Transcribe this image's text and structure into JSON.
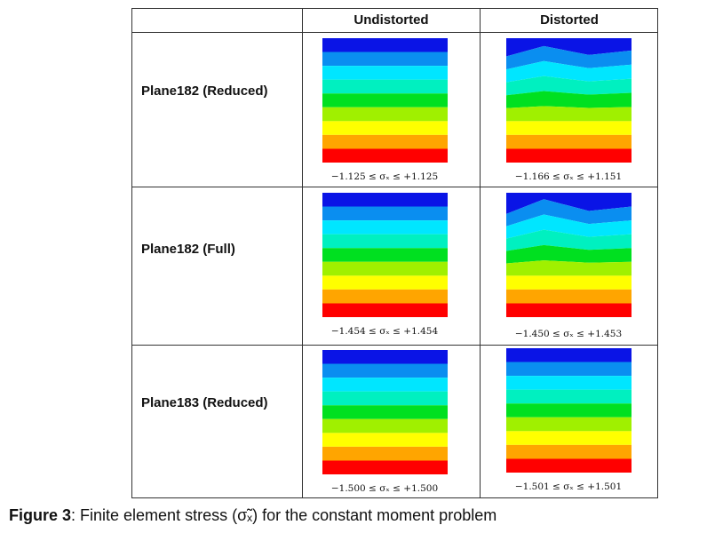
{
  "headers": {
    "undistorted": "Undistorted",
    "distorted": "Distorted"
  },
  "rows": [
    {
      "label": "Plane182 (Reduced)",
      "undistorted_range": "−1.125 ≤ σₓ ≤ +1.125",
      "distorted_range": "−1.166 ≤ σₓ ≤ +1.151"
    },
    {
      "label": "Plane182 (Full)",
      "undistorted_range": "−1.454 ≤ σₓ ≤ +1.454",
      "distorted_range": "−1.450 ≤ σₓ ≤ +1.453"
    },
    {
      "label": "Plane183 (Reduced)",
      "undistorted_range": "−1.500 ≤ σₓ ≤ +1.500",
      "distorted_range": "−1.501 ≤ σₓ ≤ +1.501"
    }
  ],
  "caption": {
    "label": "Figure 3",
    "text": ":  Finite element stress (σ̃ₓ) for the constant moment problem"
  },
  "colors": [
    "#0a14e6",
    "#0a8ef0",
    "#00e6ff",
    "#00f0c0",
    "#00e020",
    "#a0f000",
    "#ffff00",
    "#ffa500",
    "#ff0000"
  ]
}
